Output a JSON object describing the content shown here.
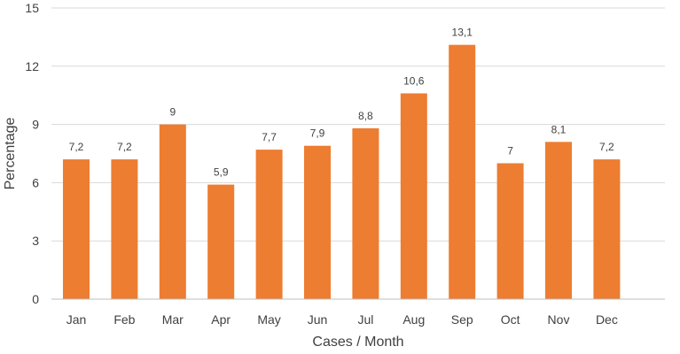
{
  "chart_data": {
    "type": "bar",
    "categories": [
      "Jan",
      "Feb",
      "Mar",
      "Apr",
      "May",
      "Jun",
      "Jul",
      "Aug",
      "Sep",
      "Oct",
      "Nov",
      "Dec"
    ],
    "values": [
      7.2,
      7.2,
      9,
      5.9,
      7.7,
      7.9,
      8.8,
      10.6,
      13.1,
      7,
      8.1,
      7.2
    ],
    "data_labels": [
      "7,2",
      "7,2",
      "9",
      "5,9",
      "7,7",
      "7,9",
      "8,8",
      "10,6",
      "13,1",
      "7",
      "8,1",
      "7,2"
    ],
    "xlabel": "Cases / Month",
    "ylabel": "Percentage",
    "ylim": [
      0,
      15
    ],
    "yticks": [
      0,
      3,
      6,
      9,
      12,
      15
    ],
    "grid": true,
    "bar_color": "#ED7D31",
    "grid_color": "#D9D9D9",
    "text_color": "#404040"
  }
}
